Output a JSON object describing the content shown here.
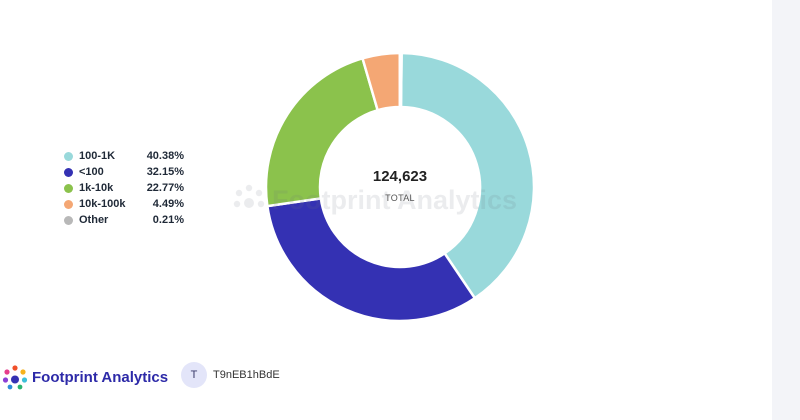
{
  "chart_data": {
    "type": "pie",
    "donut": true,
    "center_value": "124,623",
    "center_label": "TOTAL",
    "legend_position": "left",
    "slices": [
      {
        "label": "100-1K",
        "percent_label": "40.38%",
        "value": 40.38,
        "color": "#99d9db"
      },
      {
        "label": "<100",
        "percent_label": "32.15%",
        "value": 32.15,
        "color": "#3431b3"
      },
      {
        "label": "1k-10k",
        "percent_label": "22.77%",
        "value": 22.77,
        "color": "#8bc24c"
      },
      {
        "label": "10k-100k",
        "percent_label": "4.49%",
        "value": 4.49,
        "color": "#f4a774"
      },
      {
        "label": "Other",
        "percent_label": "0.21%",
        "value": 0.21,
        "color": "#b8b8b8"
      }
    ]
  },
  "watermark": {
    "text": "Footprint Analytics"
  },
  "footer": {
    "brand": "Footprint Analytics",
    "user_initial": "T",
    "username": "T9nEB1hBdE"
  }
}
